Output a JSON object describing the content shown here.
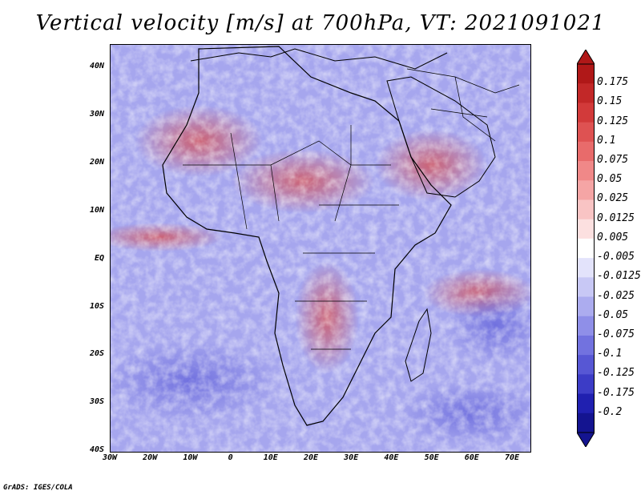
{
  "title": "Vertical velocity [m/s] at 700hPa, VT: 2021091021",
  "credit": "GrADS: IGES/COLA",
  "lat_labels": [
    "40N",
    "30N",
    "20N",
    "10N",
    "EQ",
    "10S",
    "20S",
    "30S",
    "40S"
  ],
  "lon_labels": [
    "30W",
    "20W",
    "10W",
    "0",
    "10E",
    "20E",
    "30E",
    "40E",
    "50E",
    "60E",
    "70E"
  ],
  "colorbar": {
    "labels": [
      "0.175",
      "0.15",
      "0.125",
      "0.1",
      "0.075",
      "0.05",
      "0.025",
      "0.0125",
      "0.005",
      "-0.005",
      "-0.0125",
      "-0.025",
      "-0.05",
      "-0.075",
      "-0.1",
      "-0.125",
      "-0.175",
      "-0.2"
    ],
    "colors": [
      "#b01818",
      "#c22828",
      "#d23a3a",
      "#de5252",
      "#e86b6b",
      "#f08888",
      "#f5a5a5",
      "#f9c4c4",
      "#fce0e0",
      "#ffffff",
      "#e3e3fb",
      "#c8c8f5",
      "#acacef",
      "#8f8fe8",
      "#7272df",
      "#5757d4",
      "#3c3cc6",
      "#2020b0",
      "#141490"
    ],
    "units": "m/s"
  },
  "map": {
    "variable": "Vertical velocity",
    "level": "700hPa",
    "valid_time": "2021091021"
  }
}
